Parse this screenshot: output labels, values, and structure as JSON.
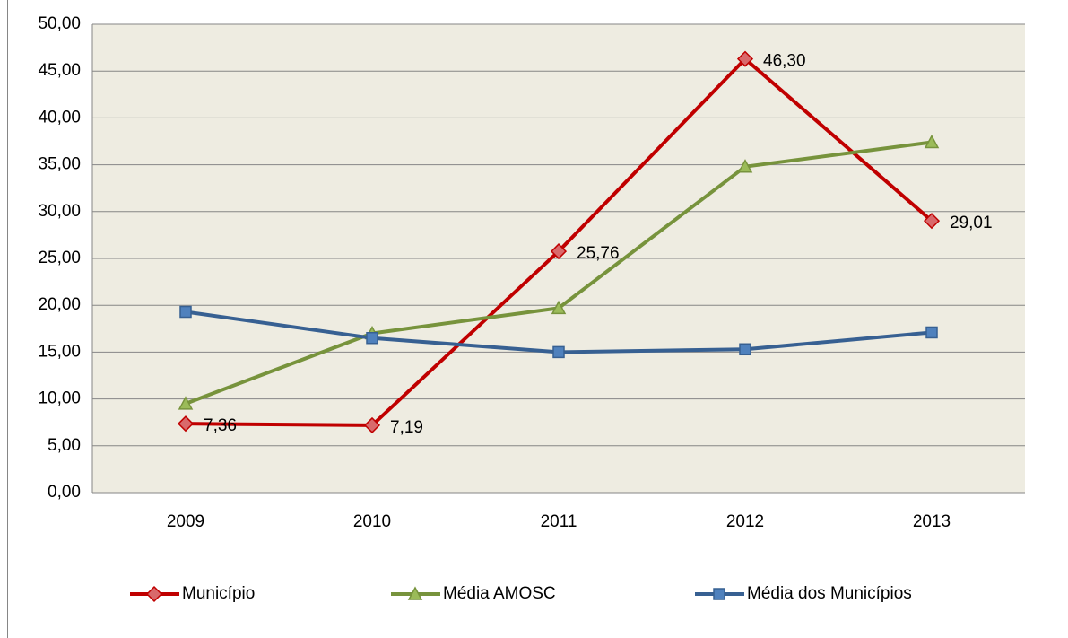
{
  "chart_data": {
    "type": "line",
    "categories": [
      "2009",
      "2010",
      "2011",
      "2012",
      "2013"
    ],
    "series": [
      {
        "name": "Município",
        "color": "#c00000",
        "marker": "diamond",
        "values": [
          7.36,
          7.19,
          25.76,
          46.3,
          29.01
        ],
        "value_labels": [
          "7,36",
          "7,19",
          "25,76",
          "46,30",
          "29,01"
        ]
      },
      {
        "name": "Média AMOSC",
        "color": "#77933c",
        "marker": "triangle",
        "values": [
          9.5,
          17.0,
          19.7,
          34.8,
          37.4
        ]
      },
      {
        "name": "Média dos Municípios",
        "color": "#376092",
        "marker": "square",
        "values": [
          19.3,
          16.5,
          15.0,
          15.3,
          17.1
        ]
      }
    ],
    "ylim": [
      0,
      50
    ],
    "yticks": [
      {
        "value": 0,
        "label": "0,00"
      },
      {
        "value": 5,
        "label": "5,00"
      },
      {
        "value": 10,
        "label": "10,00"
      },
      {
        "value": 15,
        "label": "15,00"
      },
      {
        "value": 20,
        "label": "20,00"
      },
      {
        "value": 25,
        "label": "25,00"
      },
      {
        "value": 30,
        "label": "30,00"
      },
      {
        "value": 35,
        "label": "35,00"
      },
      {
        "value": 40,
        "label": "40,00"
      },
      {
        "value": 45,
        "label": "45,00"
      },
      {
        "value": 50,
        "label": "50,00"
      }
    ],
    "grid": true,
    "legend": "bottom"
  }
}
